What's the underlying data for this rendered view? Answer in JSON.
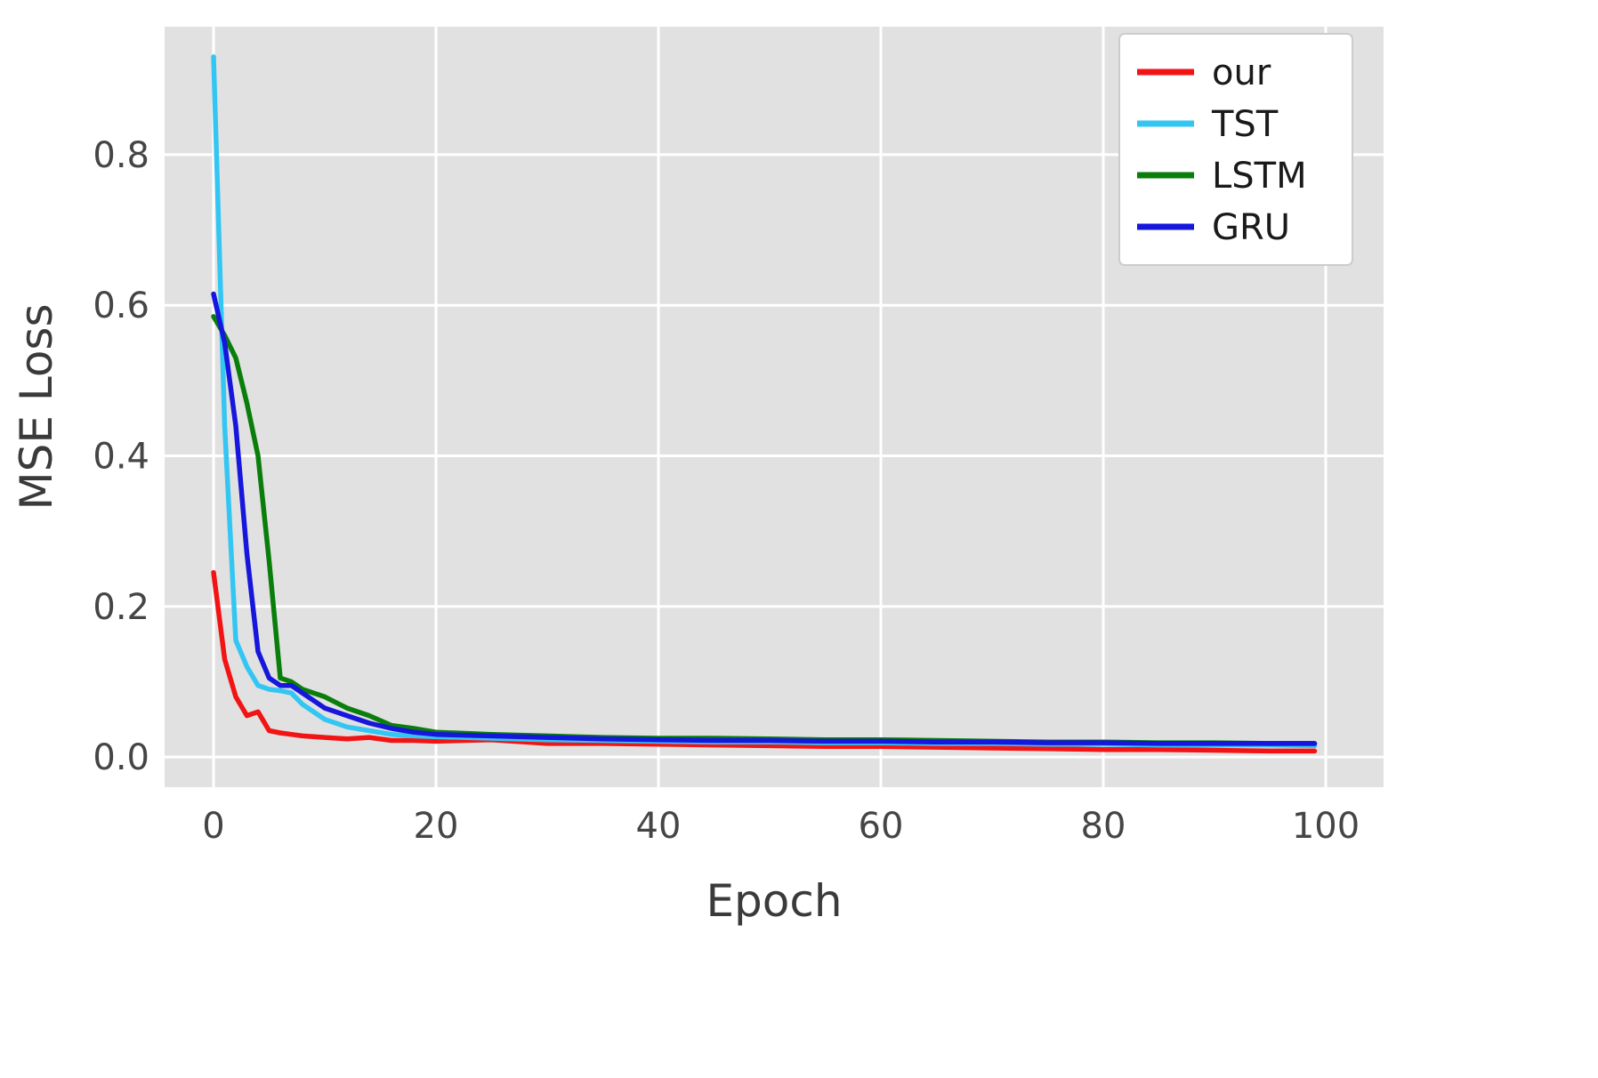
{
  "figure": {
    "background": "#ffffff"
  },
  "style": {
    "plot_bg": "#e1e1e1",
    "grid_color": "#ffffff",
    "tick_color": "#454545",
    "label_color": "#3a3a3a",
    "legend_bg": "#ffffff",
    "legend_border": "#cccccc",
    "legend_text": "#1a1a1a"
  },
  "chart_data": {
    "type": "line",
    "xlabel": "Epoch",
    "ylabel": "MSE Loss",
    "grid": true,
    "legend_position": "upper right",
    "xlim": [
      -4.4,
      105.2
    ],
    "ylim": [
      -0.04,
      0.97
    ],
    "xticks": [
      0,
      20,
      40,
      60,
      80,
      100
    ],
    "xtick_labels": [
      "0",
      "20",
      "40",
      "60",
      "80",
      "100"
    ],
    "yticks": [
      0.0,
      0.2,
      0.4,
      0.6,
      0.8
    ],
    "ytick_labels": [
      "0.0",
      "0.2",
      "0.4",
      "0.6",
      "0.8"
    ],
    "x": [
      0,
      1,
      2,
      3,
      4,
      5,
      6,
      7,
      8,
      9,
      10,
      12,
      14,
      16,
      18,
      20,
      25,
      30,
      35,
      40,
      45,
      50,
      55,
      60,
      65,
      70,
      75,
      80,
      85,
      90,
      95,
      99
    ],
    "series": [
      {
        "name": "our",
        "color": "#f21414",
        "values": [
          0.245,
          0.13,
          0.08,
          0.055,
          0.06,
          0.035,
          0.032,
          0.03,
          0.028,
          0.027,
          0.026,
          0.024,
          0.026,
          0.022,
          0.022,
          0.021,
          0.023,
          0.018,
          0.018,
          0.017,
          0.016,
          0.015,
          0.014,
          0.014,
          0.013,
          0.012,
          0.011,
          0.01,
          0.01,
          0.009,
          0.008,
          0.008
        ]
      },
      {
        "name": "TST",
        "color": "#33c6f2",
        "values": [
          0.93,
          0.44,
          0.155,
          0.12,
          0.095,
          0.09,
          0.088,
          0.085,
          0.07,
          0.06,
          0.05,
          0.04,
          0.035,
          0.03,
          0.028,
          0.027,
          0.025,
          0.023,
          0.022,
          0.021,
          0.02,
          0.02,
          0.019,
          0.019,
          0.018,
          0.018,
          0.017,
          0.017,
          0.016,
          0.016,
          0.016,
          0.015
        ]
      },
      {
        "name": "LSTM",
        "color": "#0a7e0a",
        "values": [
          0.585,
          0.56,
          0.53,
          0.47,
          0.4,
          0.26,
          0.105,
          0.1,
          0.09,
          0.085,
          0.08,
          0.065,
          0.055,
          0.042,
          0.038,
          0.033,
          0.03,
          0.028,
          0.026,
          0.025,
          0.025,
          0.024,
          0.023,
          0.023,
          0.022,
          0.021,
          0.02,
          0.02,
          0.019,
          0.019,
          0.018,
          0.018
        ]
      },
      {
        "name": "GRU",
        "color": "#1616dc",
        "values": [
          0.615,
          0.55,
          0.44,
          0.27,
          0.14,
          0.105,
          0.095,
          0.095,
          0.085,
          0.075,
          0.065,
          0.055,
          0.045,
          0.038,
          0.033,
          0.03,
          0.028,
          0.026,
          0.024,
          0.023,
          0.022,
          0.022,
          0.021,
          0.021,
          0.02,
          0.02,
          0.019,
          0.019,
          0.018,
          0.018,
          0.018,
          0.018
        ]
      }
    ]
  }
}
